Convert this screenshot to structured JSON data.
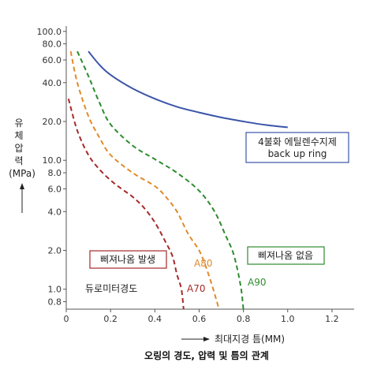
{
  "chart_data": {
    "type": "line",
    "caption": "오링의 경도, 압력 및 틈의 관계",
    "xlabel": "최대지경 틈(MM)",
    "ylabel": [
      "유",
      "체",
      "압",
      "력",
      "(MPa)"
    ],
    "xlim": [
      0,
      1.3
    ],
    "ylim": [
      0.7,
      110
    ],
    "yscale": "log",
    "x_ticks": [
      0,
      0.2,
      0.4,
      0.6,
      0.8,
      1.0,
      1.2
    ],
    "x_tick_labels": [
      "0",
      "0.2",
      "0.4",
      "0.6",
      "0.8",
      "1.0",
      "1.2"
    ],
    "y_ticks": [
      0.8,
      1.0,
      2.0,
      4.0,
      6.0,
      8.0,
      10.0,
      20.0,
      40.0,
      60.0,
      80.0,
      100.0
    ],
    "y_tick_labels": [
      "0.8",
      "1.0",
      "2.0",
      "4.0",
      "6.0",
      "8.0",
      "10.0",
      "20.0",
      "40.0",
      "60.0",
      "80.0",
      "100.0"
    ],
    "grid": false,
    "series": [
      {
        "name": "4불화 에틸렌수지제 back up ring",
        "color": "#3a55a8",
        "dash": false,
        "points": [
          [
            0.1,
            70
          ],
          [
            0.15,
            55
          ],
          [
            0.2,
            46
          ],
          [
            0.3,
            36
          ],
          [
            0.4,
            30
          ],
          [
            0.5,
            26
          ],
          [
            0.6,
            23.5
          ],
          [
            0.7,
            21.5
          ],
          [
            0.8,
            20
          ],
          [
            0.9,
            18.8
          ],
          [
            1.0,
            18
          ]
        ]
      },
      {
        "name": "A90",
        "color": "#2e8b2e",
        "dash": true,
        "points": [
          [
            0.05,
            70
          ],
          [
            0.1,
            45
          ],
          [
            0.15,
            28
          ],
          [
            0.2,
            19
          ],
          [
            0.3,
            13
          ],
          [
            0.4,
            10.2
          ],
          [
            0.5,
            8
          ],
          [
            0.6,
            5.8
          ],
          [
            0.67,
            4
          ],
          [
            0.72,
            2.6
          ],
          [
            0.75,
            2
          ],
          [
            0.77,
            1.5
          ],
          [
            0.79,
            1.0
          ],
          [
            0.8,
            0.7
          ]
        ]
      },
      {
        "name": "A80",
        "color": "#e08a2a",
        "dash": true,
        "points": [
          [
            0.02,
            70
          ],
          [
            0.05,
            40
          ],
          [
            0.1,
            22
          ],
          [
            0.15,
            15
          ],
          [
            0.2,
            11
          ],
          [
            0.3,
            8
          ],
          [
            0.4,
            6.3
          ],
          [
            0.45,
            5.2
          ],
          [
            0.5,
            4
          ],
          [
            0.55,
            2.7
          ],
          [
            0.6,
            2
          ],
          [
            0.63,
            1.5
          ],
          [
            0.66,
            1.05
          ],
          [
            0.69,
            0.7
          ]
        ]
      },
      {
        "name": "A70",
        "color": "#a52a2a",
        "dash": true,
        "points": [
          [
            0.01,
            30
          ],
          [
            0.05,
            17
          ],
          [
            0.1,
            11
          ],
          [
            0.15,
            8.5
          ],
          [
            0.2,
            7
          ],
          [
            0.25,
            6
          ],
          [
            0.3,
            5.2
          ],
          [
            0.35,
            4.3
          ],
          [
            0.4,
            3.3
          ],
          [
            0.45,
            2.3
          ],
          [
            0.48,
            1.8
          ],
          [
            0.5,
            1.3
          ],
          [
            0.52,
            1.0
          ],
          [
            0.53,
            0.7
          ]
        ]
      }
    ]
  },
  "annotations": {
    "back_up_ring_line1": "4불화 에틸렌수지제",
    "back_up_ring_line2": "back up ring",
    "no_extrusion": "삐져나옴 없음",
    "extrusion": "삐져나옴 발생",
    "durometer": "듀로미터경도",
    "a90": "A90",
    "a80": "A80",
    "a70": "A70"
  },
  "colors": {
    "blue_box": "#3a55a8",
    "green_box": "#2e8b2e",
    "red_box": "#a52a2a",
    "axis": "#555555"
  }
}
